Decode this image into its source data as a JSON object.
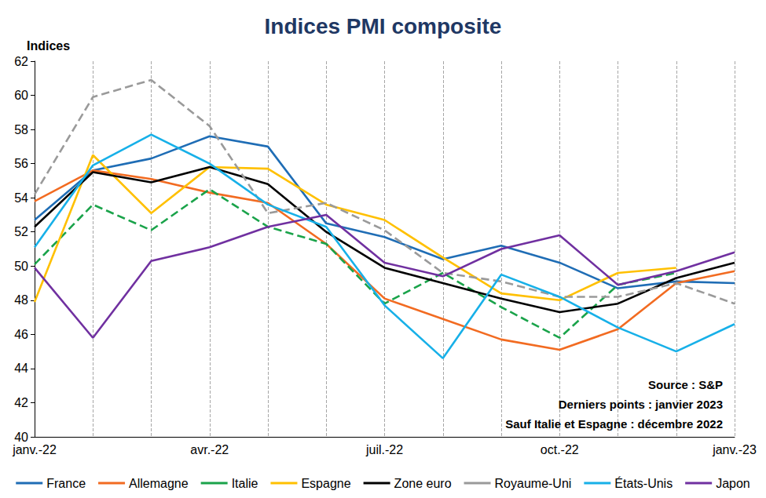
{
  "chart_data": {
    "type": "line",
    "title": "Indices PMI composite",
    "y_label": "Indices",
    "annotations": [
      "Source : S&P",
      "Derniers points : janvier 2023",
      "Sauf Italie et Espagne : décembre 2022"
    ],
    "categories": [
      "janv.-22",
      null,
      null,
      "avr.-22",
      null,
      null,
      "juil.-22",
      null,
      null,
      "oct.-22",
      null,
      null,
      "janv.-23"
    ],
    "ylim": [
      40,
      62
    ],
    "yticks": [
      40,
      42,
      44,
      46,
      48,
      50,
      52,
      54,
      56,
      58,
      60,
      62
    ],
    "grid": true,
    "legend": "bottom",
    "series": [
      {
        "name": "France",
        "color": "#1f6db5",
        "line_style": "solid",
        "values": [
          52.7,
          55.6,
          56.3,
          57.6,
          57.0,
          52.5,
          51.7,
          50.4,
          51.2,
          50.2,
          48.7,
          49.1,
          49.0
        ]
      },
      {
        "name": "Allemagne",
        "color": "#f26b21",
        "line_style": "solid",
        "values": [
          53.8,
          55.6,
          55.1,
          54.3,
          53.7,
          51.3,
          48.1,
          46.9,
          45.7,
          45.1,
          46.3,
          49.0,
          49.7
        ]
      },
      {
        "name": "Italie",
        "color": "#1aa34a",
        "line_style": "dashed",
        "values": [
          50.1,
          53.6,
          52.1,
          54.5,
          52.3,
          51.3,
          47.8,
          49.6,
          47.6,
          45.8,
          48.9,
          49.6,
          null
        ]
      },
      {
        "name": "Espagne",
        "color": "#ffc000",
        "line_style": "solid",
        "values": [
          47.9,
          56.5,
          53.1,
          55.8,
          55.7,
          53.6,
          52.7,
          50.5,
          48.4,
          48.0,
          49.6,
          49.9,
          null
        ]
      },
      {
        "name": "Zone euro",
        "color": "#000000",
        "line_style": "solid",
        "values": [
          52.3,
          55.5,
          54.9,
          55.8,
          54.8,
          52.0,
          49.9,
          49.0,
          48.1,
          47.3,
          47.8,
          49.3,
          50.2
        ]
      },
      {
        "name": "Royaume-Uni",
        "color": "#9a9a9a",
        "line_style": "dashed",
        "values": [
          54.2,
          59.9,
          60.9,
          58.2,
          53.1,
          53.7,
          52.1,
          49.6,
          49.1,
          48.2,
          48.2,
          49.0,
          47.8
        ]
      },
      {
        "name": "États-Unis",
        "color": "#17b0e8",
        "line_style": "solid",
        "values": [
          51.1,
          55.9,
          57.7,
          56.0,
          53.6,
          52.3,
          47.7,
          44.6,
          49.5,
          48.2,
          46.4,
          45.0,
          46.6
        ]
      },
      {
        "name": "Japon",
        "color": "#7030a0",
        "line_style": "solid",
        "values": [
          49.9,
          45.8,
          50.3,
          51.1,
          52.3,
          53.0,
          50.2,
          49.4,
          51.0,
          51.8,
          48.9,
          49.7,
          50.8
        ]
      }
    ]
  }
}
